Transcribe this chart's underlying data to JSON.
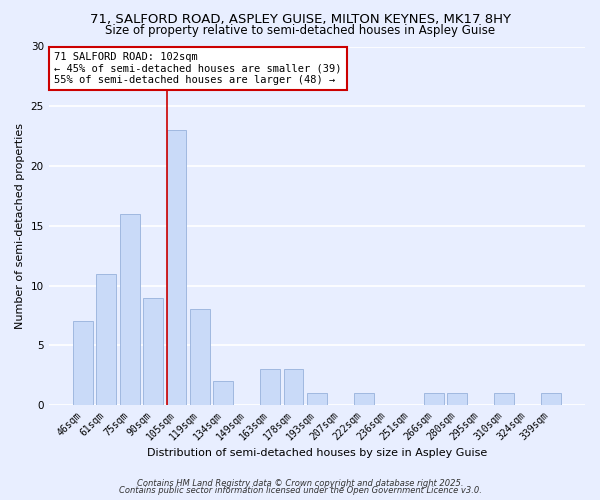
{
  "title_line1": "71, SALFORD ROAD, ASPLEY GUISE, MILTON KEYNES, MK17 8HY",
  "title_line2": "Size of property relative to semi-detached houses in Aspley Guise",
  "xlabel": "Distribution of semi-detached houses by size in Aspley Guise",
  "ylabel": "Number of semi-detached properties",
  "categories": [
    "46sqm",
    "61sqm",
    "75sqm",
    "90sqm",
    "105sqm",
    "119sqm",
    "134sqm",
    "149sqm",
    "163sqm",
    "178sqm",
    "193sqm",
    "207sqm",
    "222sqm",
    "236sqm",
    "251sqm",
    "266sqm",
    "280sqm",
    "295sqm",
    "310sqm",
    "324sqm",
    "339sqm"
  ],
  "values": [
    7,
    11,
    16,
    9,
    23,
    8,
    2,
    0,
    3,
    3,
    1,
    0,
    1,
    0,
    0,
    1,
    1,
    0,
    1,
    0,
    1
  ],
  "bar_color": "#c9daf8",
  "bar_edge_color": "#a0b8e0",
  "vline_color": "#cc0000",
  "annotation_title": "71 SALFORD ROAD: 102sqm",
  "annotation_line2": "← 45% of semi-detached houses are smaller (39)",
  "annotation_line3": "55% of semi-detached houses are larger (48) →",
  "annotation_box_color": "#cc0000",
  "background_color": "#e8eeff",
  "ylim": [
    0,
    30
  ],
  "yticks": [
    0,
    5,
    10,
    15,
    20,
    25,
    30
  ],
  "footer_line1": "Contains HM Land Registry data © Crown copyright and database right 2025.",
  "footer_line2": "Contains public sector information licensed under the Open Government Licence v3.0.",
  "grid_color": "#ffffff",
  "title_fontsize": 9.5,
  "subtitle_fontsize": 8.5,
  "axis_label_fontsize": 8,
  "tick_fontsize": 7,
  "annotation_fontsize": 7.5,
  "footer_fontsize": 6,
  "vline_bar_index": 4
}
